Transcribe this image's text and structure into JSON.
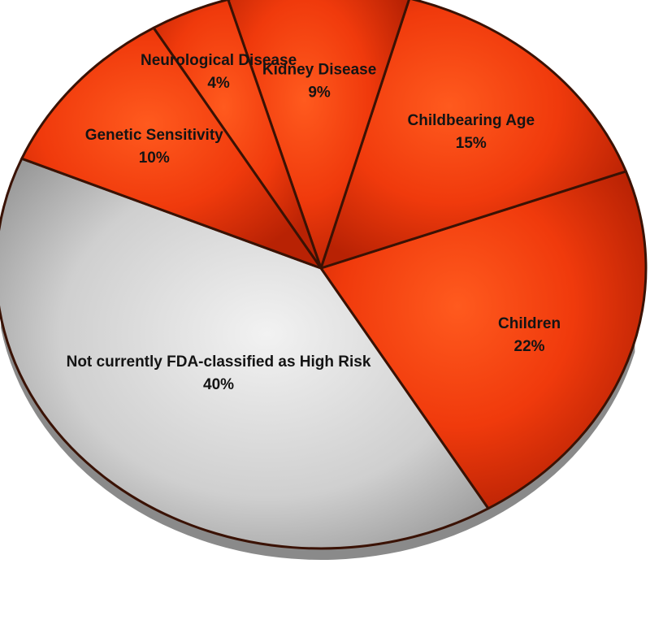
{
  "chart_data": {
    "type": "pie",
    "slices": [
      {
        "label": "Not currently FDA-classified as High Risk",
        "value": 40,
        "value_label": "40%",
        "color": "#c9c9c9"
      },
      {
        "label": "Children",
        "value": 22,
        "value_label": "22%",
        "color": "#ef3c0f"
      },
      {
        "label": "Childbearing Age",
        "value": 15,
        "value_label": "15%",
        "color": "#ef3c0f"
      },
      {
        "label": "Kidney Disease",
        "value": 9,
        "value_label": "9%",
        "color": "#ef3c0f"
      },
      {
        "label": "Neurological Disease",
        "value": 4,
        "value_label": "4%",
        "color": "#ef3c0f"
      },
      {
        "label": "Genetic Sensitivity",
        "value": 10,
        "value_label": "10%",
        "color": "#ef3c0f"
      }
    ],
    "legend": "none",
    "style": "3d-tilted"
  }
}
